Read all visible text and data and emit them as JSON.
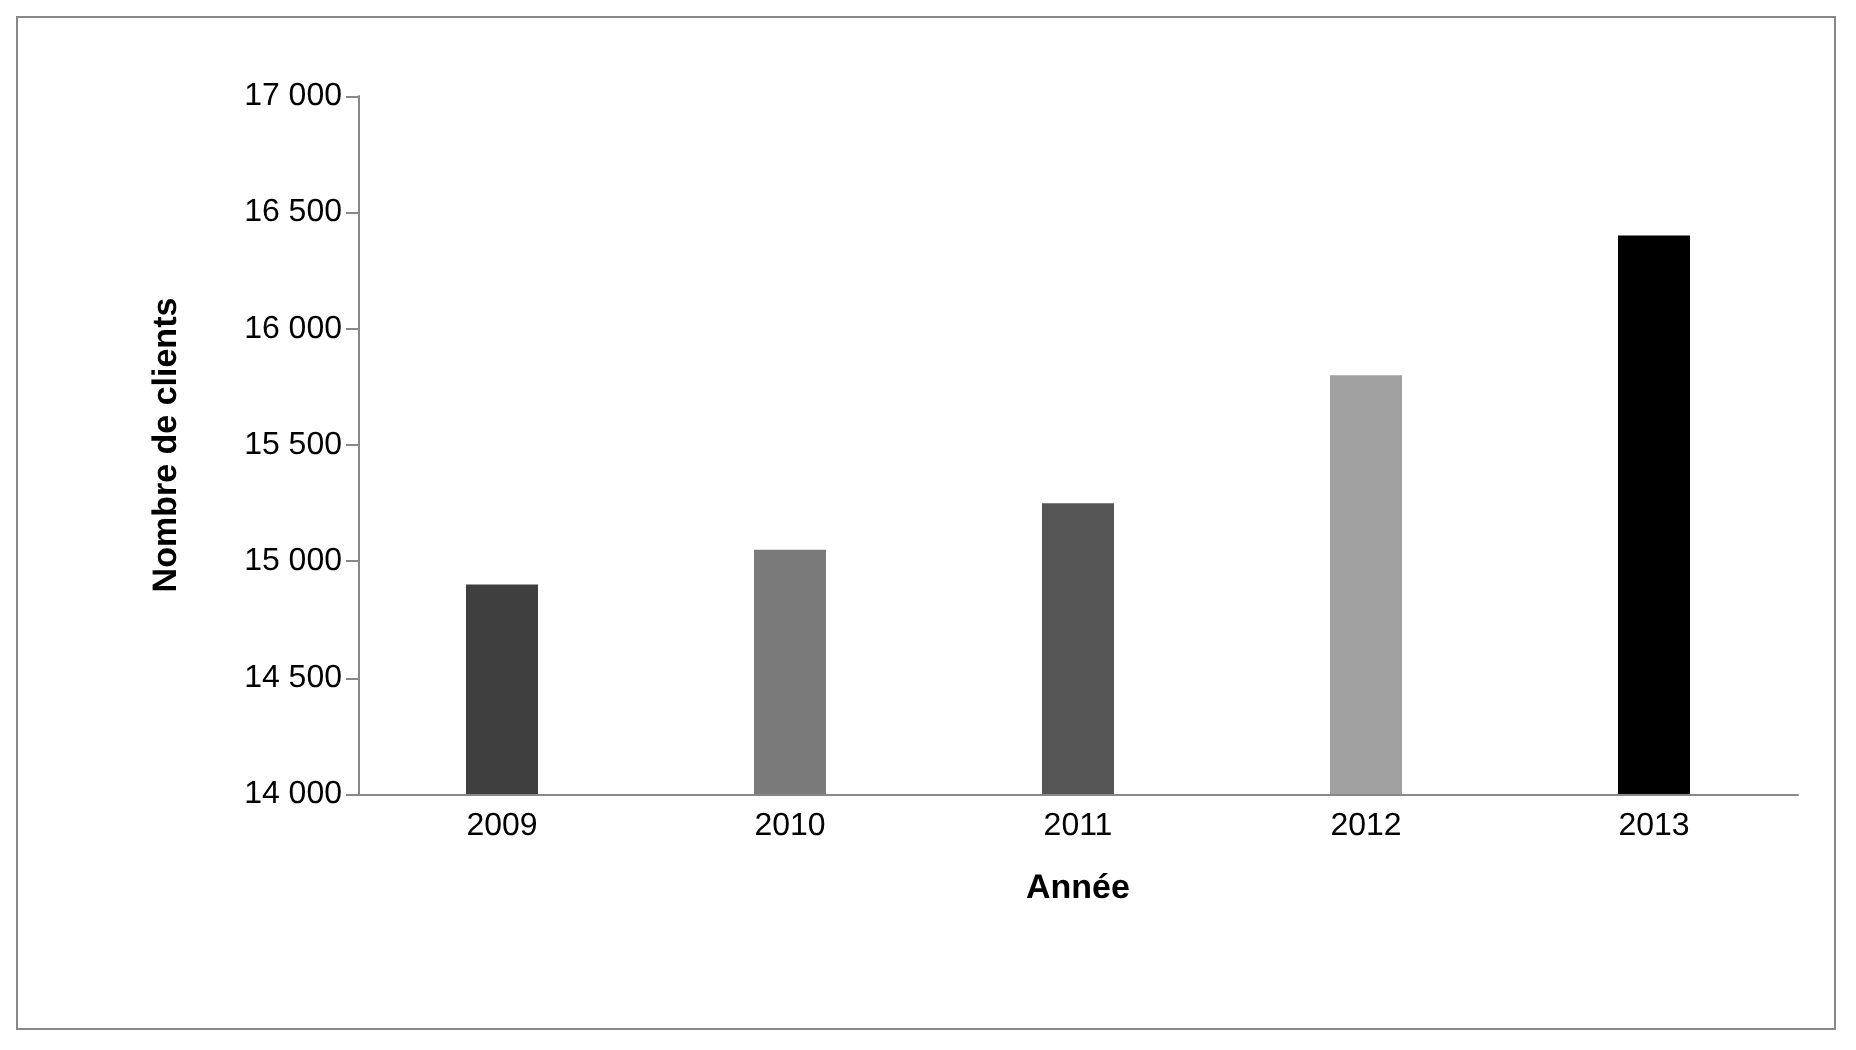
{
  "chart_data": {
    "type": "bar",
    "xlabel": "Année",
    "ylabel": "Nombre de clients",
    "categories": [
      "2009",
      "2010",
      "2011",
      "2012",
      "2013"
    ],
    "values": [
      14900,
      15050,
      15250,
      15800,
      16400
    ],
    "colors": [
      "#3f3f3f",
      "#7a7a7a",
      "#555555",
      "#a0a0a0",
      "#000000"
    ],
    "ylim": [
      14000,
      17000
    ],
    "yticks": [
      {
        "value": 14000,
        "label": "14 000"
      },
      {
        "value": 14500,
        "label": "14 500"
      },
      {
        "value": 15000,
        "label": "15 000"
      },
      {
        "value": 15500,
        "label": "15 500"
      },
      {
        "value": 16000,
        "label": "16 000"
      },
      {
        "value": 16500,
        "label": "16 500"
      },
      {
        "value": 17000,
        "label": "17 000"
      }
    ],
    "grid": false
  }
}
